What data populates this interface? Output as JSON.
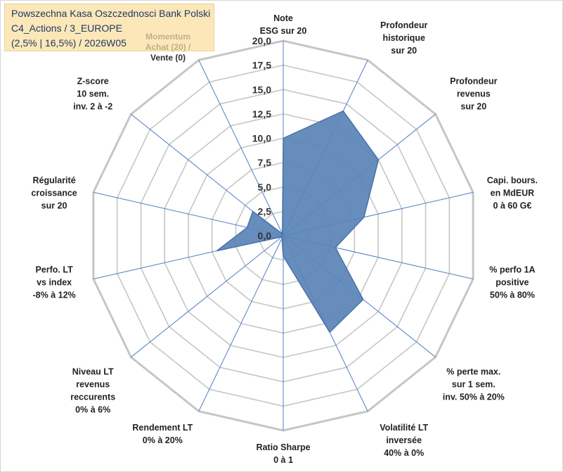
{
  "header": {
    "title_lines": [
      "Powszechna Kasa Oszczednosci Bank Polski",
      "C4_Actions / 3_EUROPE",
      "(2,5% | 16,5%) / 2026W05"
    ],
    "legend_note": "Momentum\nAchat (20) /",
    "legend_note_extra": "Vente (0)"
  },
  "colors": {
    "fill": "#5b84b8",
    "stroke": "#4a72a8",
    "grid": "#c6c6c6",
    "spoke": "#4f7fc4"
  },
  "chart_data": {
    "type": "radar",
    "title": "Powszechna Kasa Oszczednosci Bank Polski",
    "rmin": 0,
    "rmax": 20,
    "tick_step": 2.5,
    "tick_labels": [
      "0,0",
      "2,5",
      "5,0",
      "7,5",
      "10,0",
      "12,5",
      "15,0",
      "17,5",
      "20,0"
    ],
    "axes": [
      {
        "label": [
          "Note",
          "ESG sur 20"
        ],
        "value": 10.0
      },
      {
        "label": [
          "Profondeur",
          "historique",
          "sur 20"
        ],
        "value": 14.2
      },
      {
        "label": [
          "Profondeur",
          "revenus",
          "sur 20"
        ],
        "value": 12.5
      },
      {
        "label": [
          "Capi. bours.",
          "en MdEUR",
          "0 à 60 G€"
        ],
        "value": 8.5
      },
      {
        "label": [
          "% perfo 1A",
          "positive",
          "50% à 80%"
        ],
        "value": 5.5
      },
      {
        "label": [
          "% perte max.",
          "sur 1 sem.",
          "inv. 50% à 20%"
        ],
        "value": 10.5
      },
      {
        "label": [
          "Volatilité LT",
          "inversée",
          "40% à 0%"
        ],
        "value": 11.0
      },
      {
        "label": [
          "Ratio Sharpe",
          "0 à 1"
        ],
        "value": 2.1
      },
      {
        "label": [
          "Rendement LT",
          "0% à 20%"
        ],
        "value": 0.3
      },
      {
        "label": [
          "Niveau LT",
          "revenus",
          "reccurents",
          "0% à 6%"
        ],
        "value": 0.2
      },
      {
        "label": [
          "Perfo. LT",
          "vs index",
          "-8% à 12%"
        ],
        "value": 7.0
      },
      {
        "label": [
          "Régularité",
          "croissance",
          "sur 20"
        ],
        "value": 3.8
      },
      {
        "label": [
          "Z-score",
          "10 sem.",
          "inv. 2 à -2"
        ],
        "value": 4.0
      },
      {
        "label": [
          "Momentum",
          "Achat (20) /",
          "Vente (0)"
        ],
        "value": 0.2
      }
    ]
  }
}
